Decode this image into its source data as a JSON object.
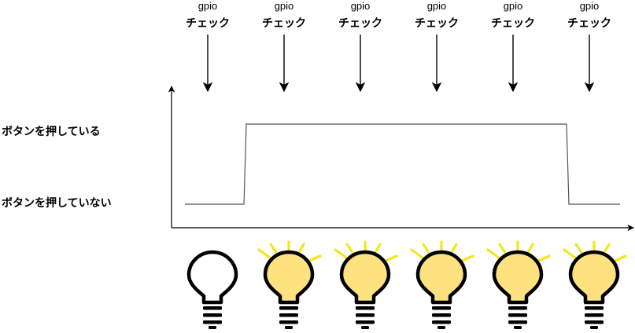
{
  "checks": [
    {
      "line1": "gpio",
      "line2": "チェック"
    },
    {
      "line1": "gpio",
      "line2": "チェック"
    },
    {
      "line1": "gpio",
      "line2": "チェック"
    },
    {
      "line1": "gpio",
      "line2": "チェック"
    },
    {
      "line1": "gpio",
      "line2": "チェック"
    },
    {
      "line1": "gpio",
      "line2": "チェック"
    }
  ],
  "states": {
    "high_label": "ボタンを押している",
    "low_label": "ボタンを押していない"
  },
  "signal": {
    "levels": [
      "low",
      "high",
      "high",
      "high",
      "high",
      "low"
    ]
  },
  "bulbs": [
    {
      "state": "off"
    },
    {
      "state": "on"
    },
    {
      "state": "on"
    },
    {
      "state": "on"
    },
    {
      "state": "on"
    },
    {
      "state": "on"
    }
  ],
  "colors": {
    "line": "#000000",
    "signal": "#555555",
    "bulb_on_fill": "#fde27f",
    "bulb_off_fill": "#ffffff",
    "ray": "#f2e61c"
  }
}
